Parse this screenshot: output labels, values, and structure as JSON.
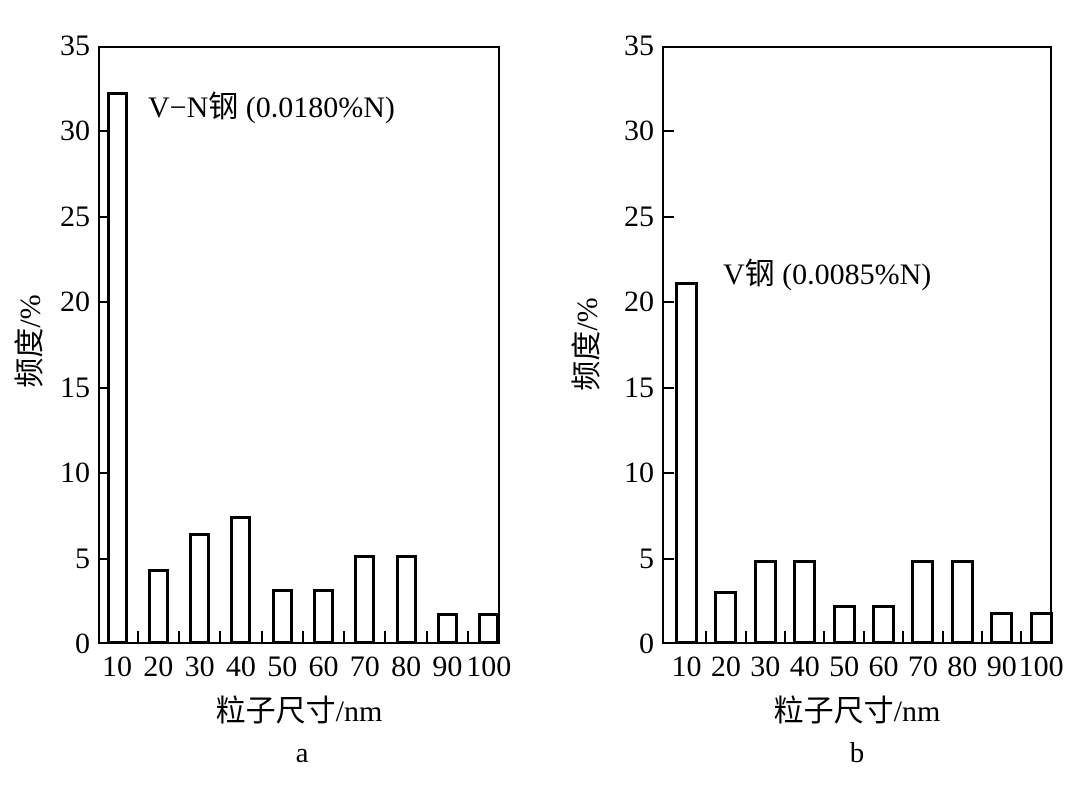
{
  "figure": {
    "background_color": "#ffffff",
    "ink_color": "#000000"
  },
  "chart_data": [
    {
      "id": "a",
      "type": "bar",
      "title": "V−N钢 (0.0180%N)",
      "sublabel": "a",
      "xlabel": "粒子尺寸/nm",
      "ylabel": "频度/%",
      "categories": [
        "10",
        "20",
        "30",
        "40",
        "50",
        "60",
        "70",
        "80",
        "90",
        "100"
      ],
      "values": [
        32.3,
        4.4,
        6.5,
        7.5,
        3.2,
        3.2,
        5.2,
        5.2,
        1.8,
        1.8
      ],
      "ylim": [
        0,
        35
      ],
      "yticks": [
        "35",
        "30",
        "25",
        "20",
        "15",
        "10",
        "5",
        "0"
      ],
      "grid": false,
      "legend": "none",
      "bar_fill": "#ffffff",
      "bar_stroke": "#000000"
    },
    {
      "id": "b",
      "type": "bar",
      "title": "V钢 (0.0085%N)",
      "sublabel": "b",
      "xlabel": "粒子尺寸/nm",
      "ylabel": "频度/%",
      "categories": [
        "10",
        "20",
        "30",
        "40",
        "50",
        "60",
        "70",
        "80",
        "90",
        "100"
      ],
      "values": [
        21.2,
        3.1,
        4.9,
        4.9,
        2.3,
        2.3,
        4.9,
        4.9,
        1.9,
        1.9
      ],
      "ylim": [
        0,
        35
      ],
      "yticks": [
        "35",
        "30",
        "25",
        "20",
        "15",
        "10",
        "5",
        "0"
      ],
      "grid": false,
      "legend": "none",
      "bar_fill": "#ffffff",
      "bar_stroke": "#000000"
    }
  ]
}
